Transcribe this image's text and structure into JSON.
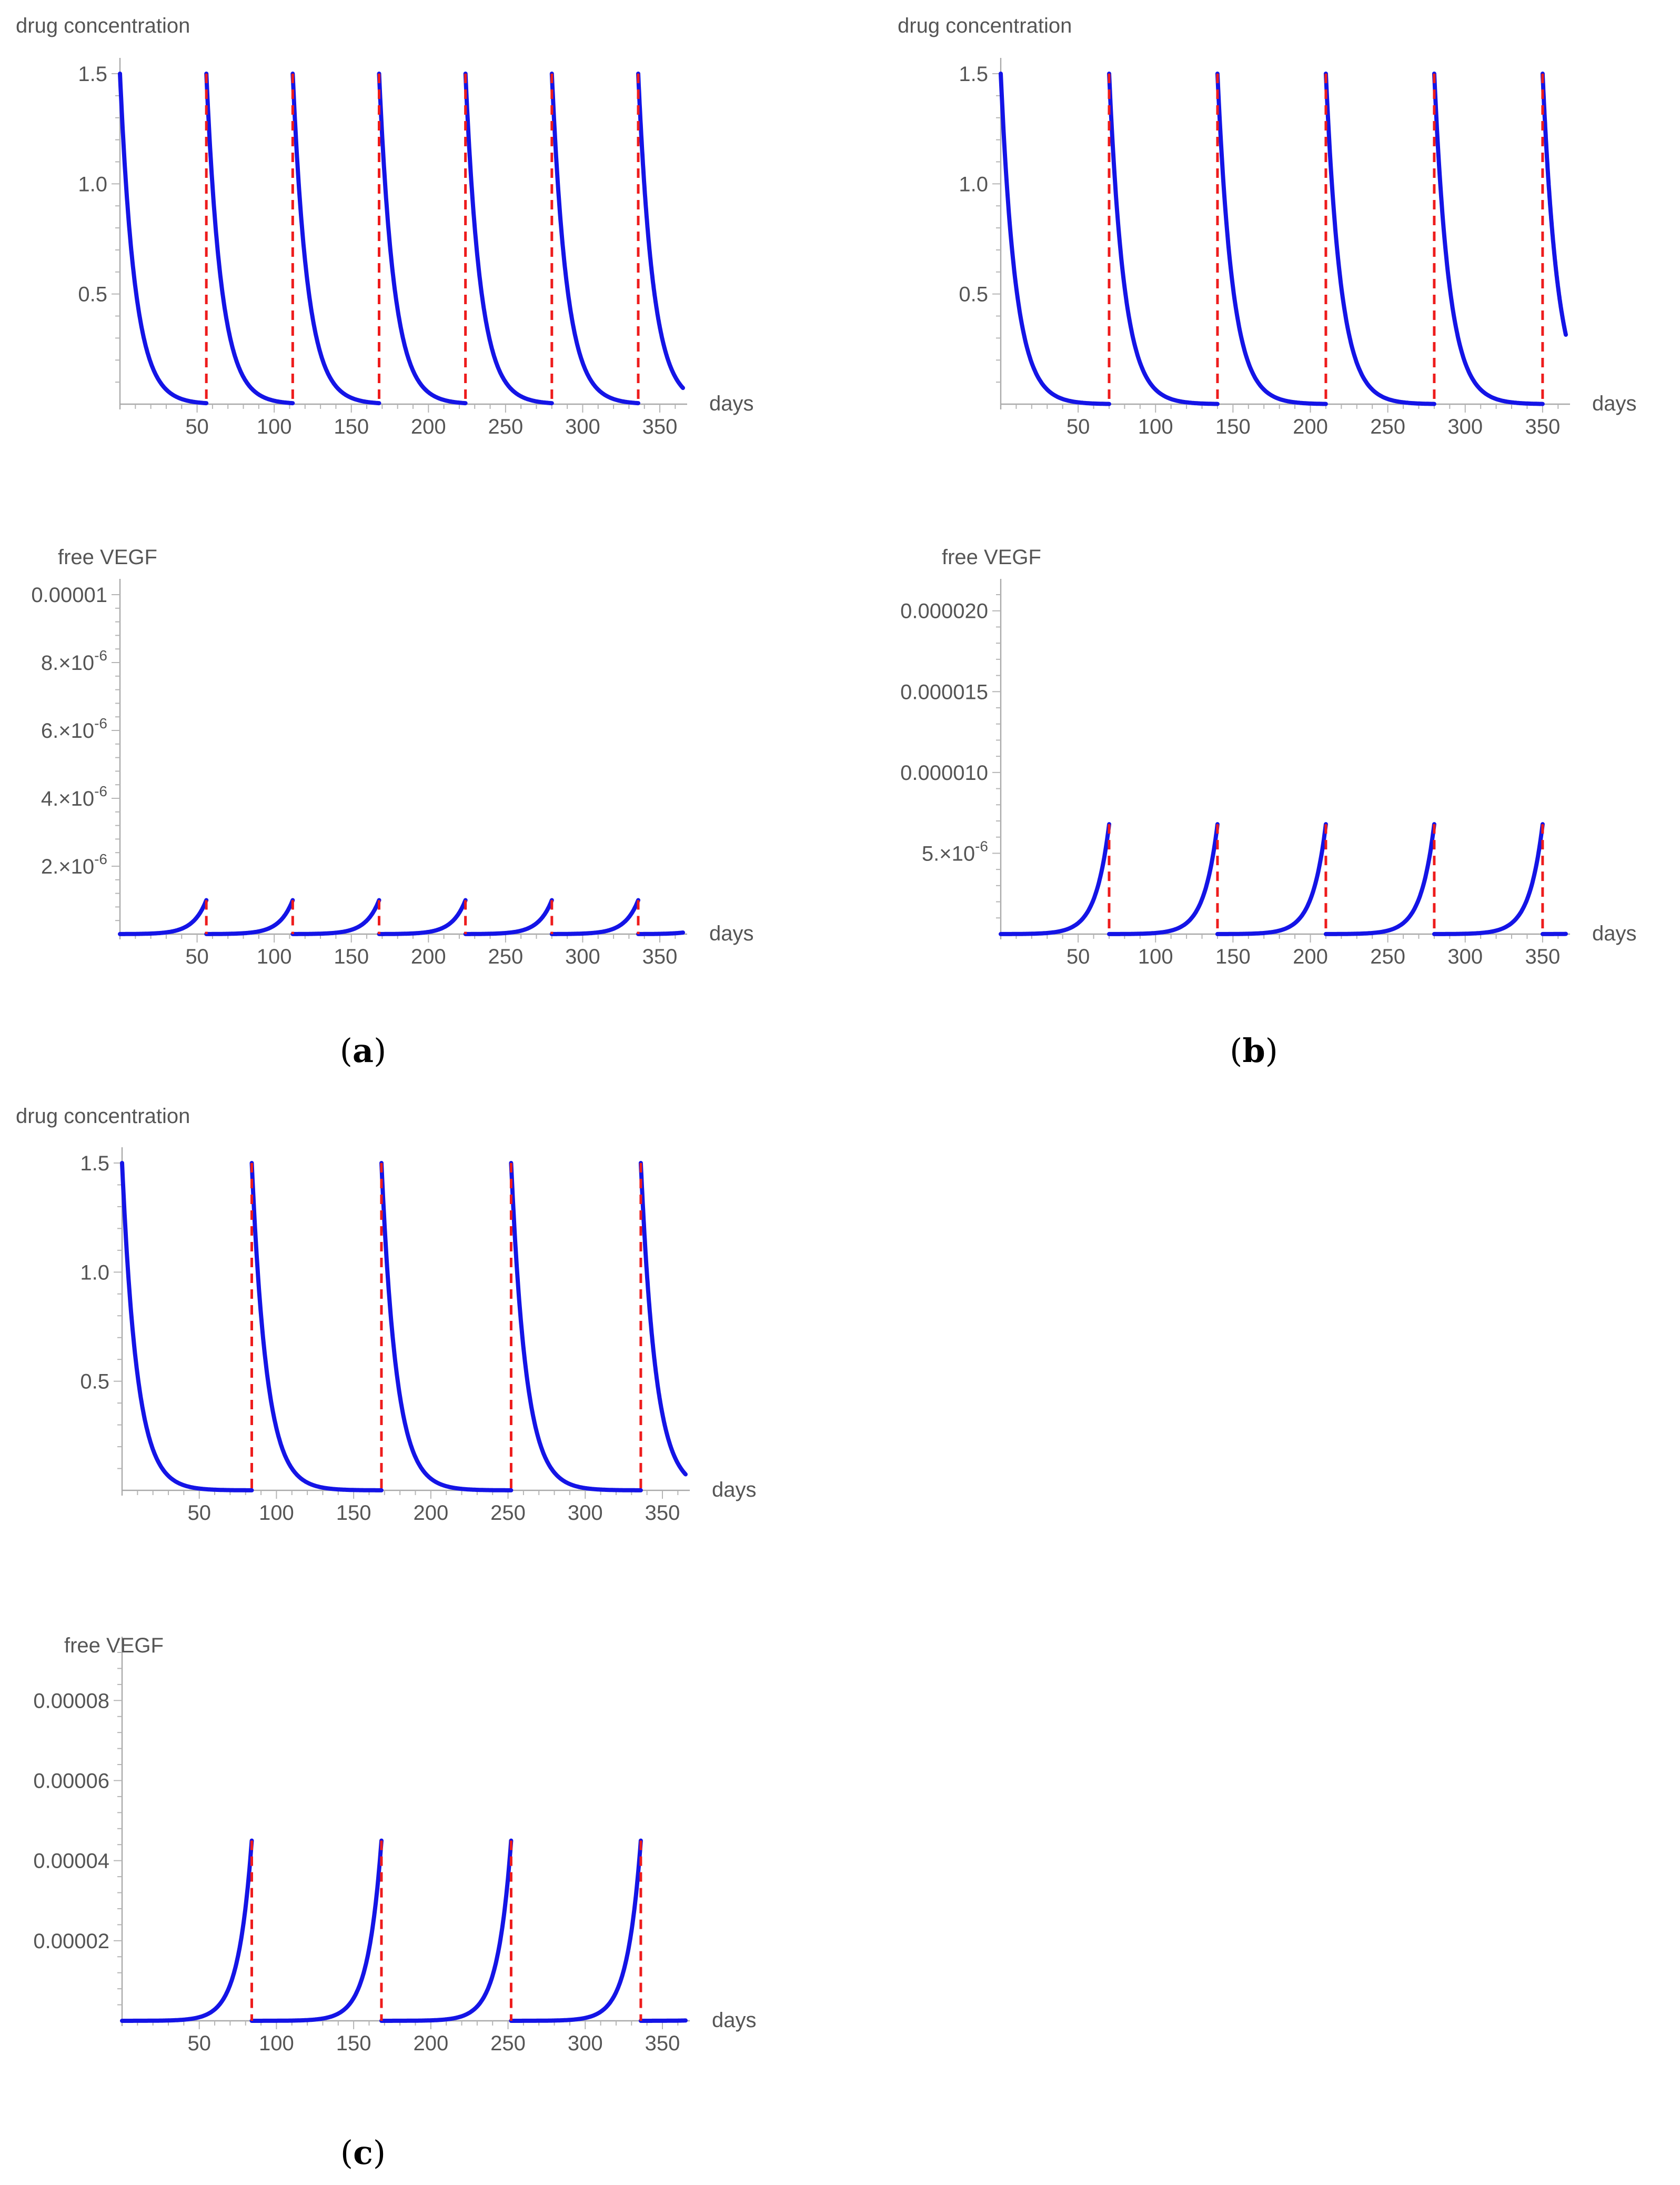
{
  "colors": {
    "curve": "#1414e6",
    "dose": "#ee1c1c",
    "axis": "#a9a9a9",
    "text": "#555555"
  },
  "panel_labels": [
    {
      "open": "(",
      "letter": "a",
      "close": ")"
    },
    {
      "open": "(",
      "letter": "b",
      "close": ")"
    },
    {
      "open": "(",
      "letter": "c",
      "close": ")"
    }
  ],
  "chart_data": [
    {
      "id": "a-drug",
      "panel": "a",
      "type": "line",
      "title": "",
      "ylabel": "drug concentration",
      "xlabel": "days",
      "xlim": [
        0,
        365
      ],
      "ylim": [
        0,
        1.5
      ],
      "xticks": [
        50,
        100,
        150,
        200,
        250,
        300,
        350
      ],
      "yticks": [
        {
          "v": 0.5,
          "t": "0.5"
        },
        {
          "v": 1.0,
          "t": "1.0"
        },
        {
          "v": 1.5,
          "t": "1.5"
        }
      ],
      "model": "drug",
      "interval": 56,
      "doses": [
        56,
        112,
        168,
        224,
        280,
        336
      ],
      "c0": 1.5,
      "decay_rate": 0.104,
      "series": [
        {
          "name": "drug concentration",
          "color": "#1414e6"
        }
      ]
    },
    {
      "id": "a-vegf",
      "panel": "a",
      "type": "line",
      "title": "",
      "ylabel": "free VEGF",
      "xlabel": "days",
      "xlim": [
        0,
        365
      ],
      "ylim": [
        0,
        1e-05
      ],
      "xticks": [
        50,
        100,
        150,
        200,
        250,
        300,
        350
      ],
      "yticks": [
        {
          "v": 2e-06,
          "t": "2.×10",
          "e": "-6"
        },
        {
          "v": 4e-06,
          "t": "4.×10",
          "e": "-6"
        },
        {
          "v": 6e-06,
          "t": "6.×10",
          "e": "-6"
        },
        {
          "v": 8e-06,
          "t": "8.×10",
          "e": "-6"
        },
        {
          "v": 1e-05,
          "t": "0.00001"
        }
      ],
      "model": "vegf",
      "interval": 56,
      "doses": [
        56,
        112,
        168,
        224,
        280,
        336
      ],
      "peak": 1e-06,
      "growth_rate": 0.115,
      "series": [
        {
          "name": "free VEGF",
          "color": "#1414e6"
        }
      ]
    },
    {
      "id": "b-drug",
      "panel": "b",
      "type": "line",
      "title": "",
      "ylabel": "drug concentration",
      "xlabel": "days",
      "xlim": [
        0,
        365
      ],
      "ylim": [
        0,
        1.5
      ],
      "xticks": [
        50,
        100,
        150,
        200,
        250,
        300,
        350
      ],
      "yticks": [
        {
          "v": 0.5,
          "t": "0.5"
        },
        {
          "v": 1.0,
          "t": "1.0"
        },
        {
          "v": 1.5,
          "t": "1.5"
        }
      ],
      "model": "drug",
      "interval": 70,
      "doses": [
        70,
        140,
        210,
        280,
        350
      ],
      "c0": 1.5,
      "decay_rate": 0.104,
      "series": [
        {
          "name": "drug concentration",
          "color": "#1414e6"
        }
      ]
    },
    {
      "id": "b-vegf",
      "panel": "b",
      "type": "line",
      "title": "",
      "ylabel": "free VEGF",
      "xlabel": "days",
      "xlim": [
        0,
        365
      ],
      "ylim": [
        0,
        2.1e-05
      ],
      "xticks": [
        50,
        100,
        150,
        200,
        250,
        300,
        350
      ],
      "yticks": [
        {
          "v": 5e-06,
          "t": "5.×10",
          "e": "-6"
        },
        {
          "v": 1e-05,
          "t": "0.000010"
        },
        {
          "v": 1.5e-05,
          "t": "0.000015"
        },
        {
          "v": 2e-05,
          "t": "0.000020"
        }
      ],
      "model": "vegf",
      "interval": 70,
      "doses": [
        70,
        140,
        210,
        280,
        350
      ],
      "peak": 6.8e-06,
      "growth_rate": 0.115,
      "series": [
        {
          "name": "free VEGF",
          "color": "#1414e6"
        }
      ]
    },
    {
      "id": "c-drug",
      "panel": "c",
      "type": "line",
      "title": "",
      "ylabel": "drug concentration",
      "xlabel": "days",
      "xlim": [
        0,
        365
      ],
      "ylim": [
        0,
        1.5
      ],
      "xticks": [
        50,
        100,
        150,
        200,
        250,
        300,
        350
      ],
      "yticks": [
        {
          "v": 0.5,
          "t": "0.5"
        },
        {
          "v": 1.0,
          "t": "1.0"
        },
        {
          "v": 1.5,
          "t": "1.5"
        }
      ],
      "model": "drug",
      "interval": 84,
      "doses": [
        84,
        168,
        252,
        336
      ],
      "c0": 1.5,
      "decay_rate": 0.104,
      "series": [
        {
          "name": "drug concentration",
          "color": "#1414e6"
        }
      ]
    },
    {
      "id": "c-vegf",
      "panel": "c",
      "type": "line",
      "title": "",
      "ylabel": "free VEGF",
      "xlabel": "days",
      "xlim": [
        0,
        365
      ],
      "ylim": [
        0,
        9.2e-05
      ],
      "xticks": [
        50,
        100,
        150,
        200,
        250,
        300,
        350
      ],
      "yticks": [
        {
          "v": 2e-05,
          "t": "0.00002"
        },
        {
          "v": 4e-05,
          "t": "0.00004"
        },
        {
          "v": 6e-05,
          "t": "0.00006"
        },
        {
          "v": 8e-05,
          "t": "0.00008"
        }
      ],
      "model": "vegf",
      "interval": 84,
      "doses": [
        84,
        168,
        252,
        336
      ],
      "peak": 4.5e-05,
      "growth_rate": 0.115,
      "series": [
        {
          "name": "free VEGF",
          "color": "#1414e6"
        }
      ]
    }
  ]
}
